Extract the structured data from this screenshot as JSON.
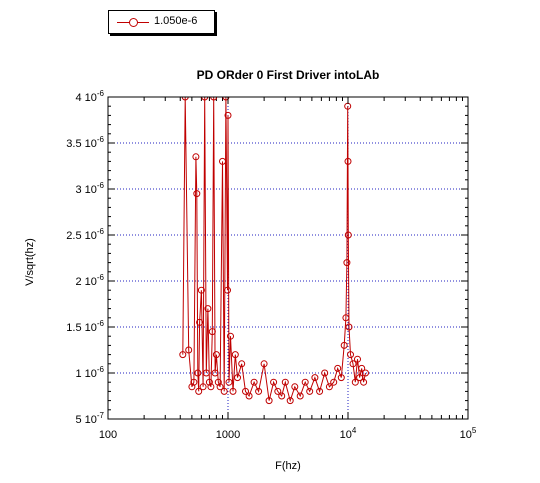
{
  "chart_data": {
    "type": "line",
    "title": "PD ORder 0 First Driver intoLAb",
    "xlabel": "F(hz)",
    "ylabel": "V/sqrt(hz)",
    "xscale": "log",
    "xlim": [
      100,
      100000
    ],
    "ylim": [
      5e-07,
      4e-06
    ],
    "x_ticks": [
      {
        "value": 100,
        "label": "100",
        "sup": ""
      },
      {
        "value": 1000,
        "label": "1000",
        "sup": ""
      },
      {
        "value": 10000,
        "label": "10",
        "sup": "4"
      },
      {
        "value": 100000,
        "label": "10",
        "sup": "5"
      }
    ],
    "y_ticks": [
      {
        "value": 5e-07,
        "label": "5 10",
        "sup": "-7"
      },
      {
        "value": 1e-06,
        "label": "1 10",
        "sup": "-6"
      },
      {
        "value": 1.5e-06,
        "label": "1.5 10",
        "sup": "-6"
      },
      {
        "value": 2e-06,
        "label": "2 10",
        "sup": "-6"
      },
      {
        "value": 2.5e-06,
        "label": "2.5 10",
        "sup": "-6"
      },
      {
        "value": 3e-06,
        "label": "3 10",
        "sup": "-6"
      },
      {
        "value": 3.5e-06,
        "label": "3.5 10",
        "sup": "-6"
      },
      {
        "value": 4e-06,
        "label": "4 10",
        "sup": "-6"
      }
    ],
    "grid": true,
    "legend_position": "top-left",
    "series": [
      {
        "name": "1.050e-6",
        "color": "#c00000",
        "marker": "open-circle",
        "x": [
          420,
          440,
          470,
          500,
          520,
          540,
          550,
          560,
          570,
          580,
          600,
          620,
          640,
          660,
          680,
          700,
          720,
          740,
          760,
          780,
          800,
          830,
          860,
          900,
          930,
          960,
          990,
          1000,
          1020,
          1050,
          1100,
          1150,
          1200,
          1300,
          1400,
          1500,
          1650,
          1800,
          2000,
          2200,
          2400,
          2600,
          2800,
          3000,
          3300,
          3600,
          4000,
          4400,
          4800,
          5300,
          5800,
          6400,
          7000,
          7600,
          8200,
          8800,
          9300,
          9600,
          9800,
          9950,
          10000,
          10050,
          10200,
          10500,
          11000,
          11500,
          12000,
          12500,
          13000,
          13500,
          14000
        ],
        "values": [
          1.2e-06,
          4e-06,
          1.25e-06,
          8.5e-07,
          9e-07,
          3.35e-06,
          2.95e-06,
          1e-06,
          8e-07,
          1.55e-06,
          1.9e-06,
          8.5e-07,
          4e-06,
          1e-06,
          1.7e-06,
          9e-07,
          8.5e-07,
          1.45e-06,
          4e-06,
          1e-06,
          1.2e-06,
          9e-07,
          8.5e-07,
          3.3e-06,
          8e-07,
          4e-06,
          1.9e-06,
          3.8e-06,
          9e-07,
          1.4e-06,
          8e-07,
          1.2e-06,
          9.5e-07,
          1.1e-06,
          8e-07,
          7.5e-07,
          9e-07,
          8e-07,
          1.1e-06,
          7e-07,
          9e-07,
          8e-07,
          7.5e-07,
          9e-07,
          7e-07,
          8.5e-07,
          7.5e-07,
          9e-07,
          8e-07,
          9.5e-07,
          8e-07,
          1e-06,
          8.5e-07,
          9e-07,
          1.05e-06,
          9.5e-07,
          1.3e-06,
          1.6e-06,
          2.2e-06,
          3.9e-06,
          3.3e-06,
          2.5e-06,
          1.5e-06,
          1.2e-06,
          1.1e-06,
          9e-07,
          1.15e-06,
          9.5e-07,
          1.05e-06,
          9e-07,
          1e-06
        ]
      }
    ]
  }
}
